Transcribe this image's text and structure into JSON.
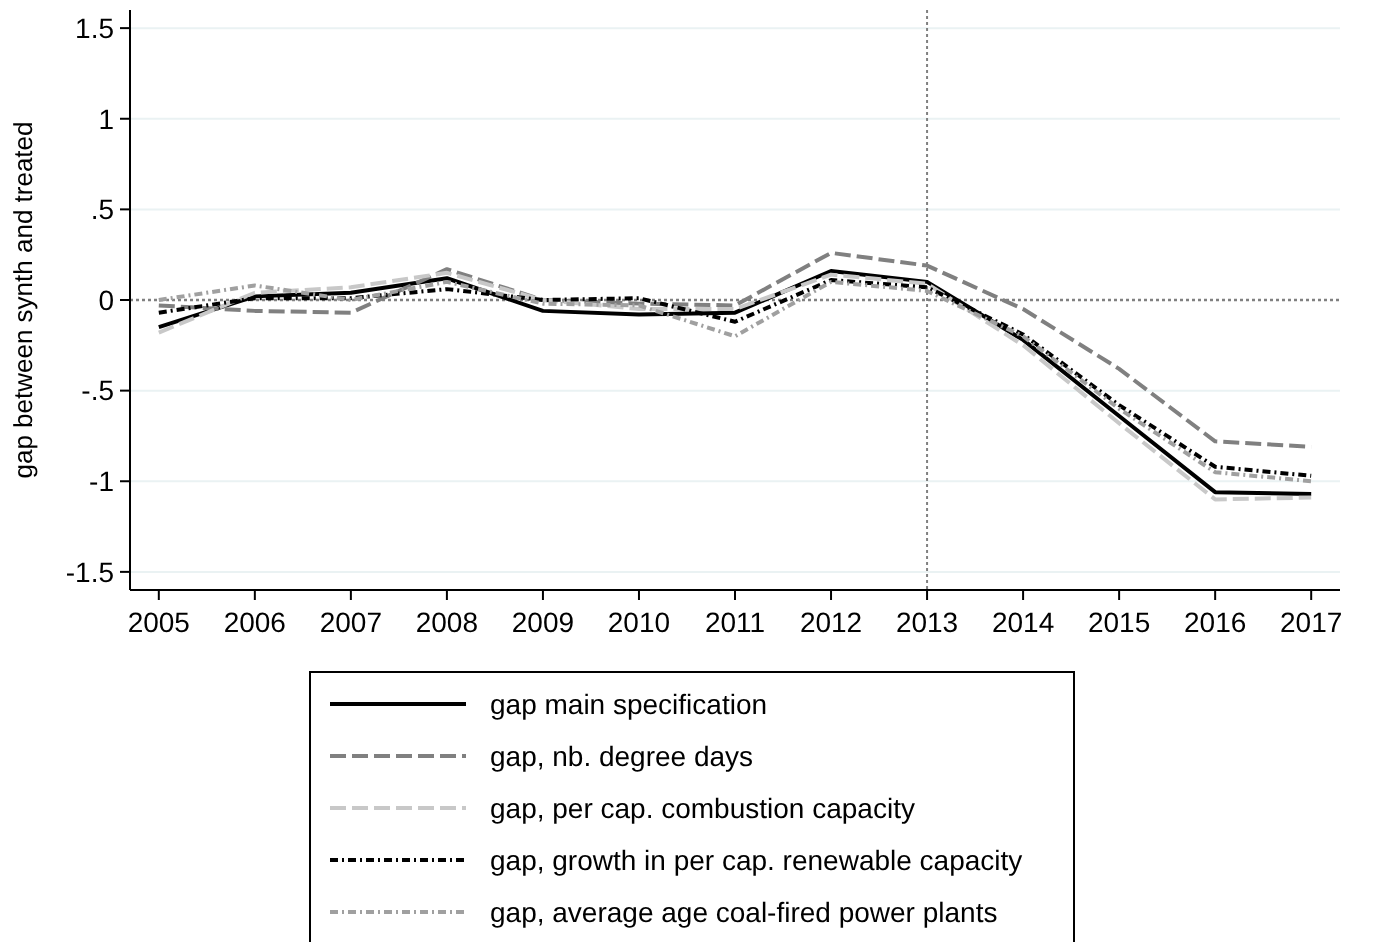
{
  "chart_data": {
    "type": "line",
    "ylabel": "gap between synth and treated",
    "x": [
      2005,
      2006,
      2007,
      2008,
      2009,
      2010,
      2011,
      2012,
      2013,
      2014,
      2015,
      2016,
      2017
    ],
    "xlim": [
      2004.7,
      2017.3
    ],
    "xticks": [
      2005,
      2006,
      2007,
      2008,
      2009,
      2010,
      2011,
      2012,
      2013,
      2014,
      2015,
      2016,
      2017
    ],
    "ylim": [
      -1.6,
      1.6
    ],
    "yticks": [
      {
        "value": 1.5,
        "label": "1.5"
      },
      1,
      {
        "value": 0.5,
        "label": ".5"
      },
      0,
      {
        "value": -0.5,
        "label": "-.5"
      },
      -1,
      {
        "value": -1.5,
        "label": "-1.5"
      }
    ],
    "grid": "y",
    "legend": "bottom",
    "ref_lines": [
      {
        "axis": "x",
        "value": 2013,
        "label": null,
        "line_style": "dotted",
        "color": "#808080"
      },
      {
        "axis": "y",
        "value": 0,
        "label": null,
        "line_style": "dotted",
        "color": "#808080"
      }
    ],
    "series": [
      {
        "name": "gap main specification",
        "color": "#000000",
        "line_style": "solid",
        "values": [
          -0.15,
          0.02,
          0.04,
          0.12,
          -0.06,
          -0.08,
          -0.07,
          0.16,
          0.1,
          -0.22,
          -0.64,
          -1.06,
          -1.07
        ]
      },
      {
        "name": "gap, nb. degree days",
        "color": "#808080",
        "line_style": "dashed",
        "values": [
          -0.03,
          -0.06,
          -0.07,
          0.17,
          0.0,
          -0.02,
          -0.03,
          0.26,
          0.19,
          -0.05,
          -0.38,
          -0.78,
          -0.81
        ]
      },
      {
        "name": "gap, per cap. combustion capacity",
        "color": "#c8c8c8",
        "line_style": "dashed",
        "values": [
          -0.18,
          0.04,
          0.07,
          0.15,
          0.0,
          -0.05,
          -0.05,
          0.14,
          0.09,
          -0.25,
          -0.68,
          -1.1,
          -1.09
        ]
      },
      {
        "name": "gap, growth in per cap. renewable capacity",
        "color": "#000000",
        "line_style": "dotted",
        "values": [
          -0.07,
          0.01,
          0.01,
          0.06,
          0.0,
          0.01,
          -0.12,
          0.11,
          0.07,
          -0.19,
          -0.58,
          -0.92,
          -0.97
        ]
      },
      {
        "name": "gap, average age coal-fired power plants",
        "color": "#a0a0a0",
        "line_style": "dotted",
        "values": [
          0.0,
          0.08,
          0.0,
          0.1,
          -0.02,
          -0.03,
          -0.2,
          0.1,
          0.05,
          -0.2,
          -0.6,
          -0.95,
          -1.0
        ]
      }
    ]
  }
}
